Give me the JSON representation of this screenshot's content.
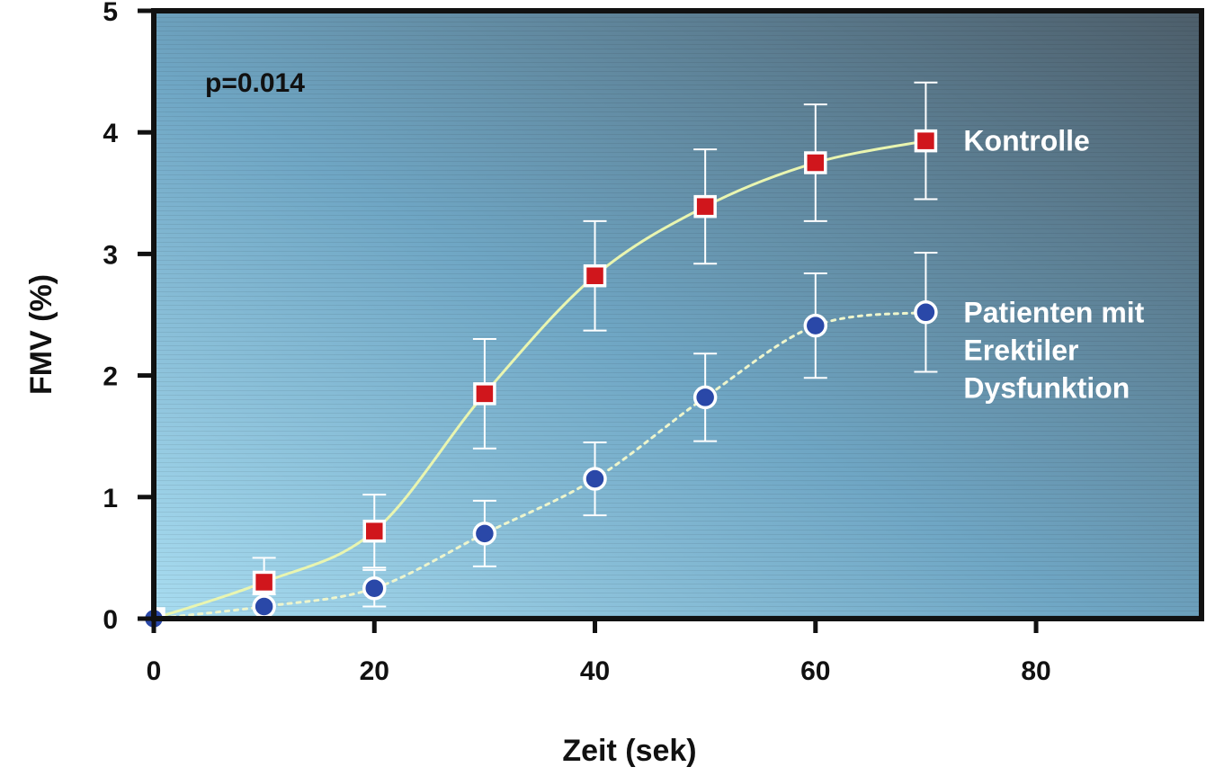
{
  "chart_data": {
    "type": "line",
    "title": "",
    "xlabel": "Zeit (sek)",
    "ylabel": "FMV (%)",
    "xlim": [
      0,
      95
    ],
    "ylim": [
      0,
      5
    ],
    "x_ticks": [
      "0",
      "20",
      "40",
      "60",
      "80"
    ],
    "y_ticks": [
      "0",
      "1",
      "2",
      "3",
      "4",
      "5"
    ],
    "annotation": "p=0.014",
    "grid": false,
    "series": [
      {
        "name": "Kontrolle",
        "label_lines": [
          "Kontrolle"
        ],
        "marker": "square",
        "line_style": "solid",
        "marker_color": "#d0161c",
        "line_color": "#e9f5b0",
        "x": [
          0,
          10,
          20,
          30,
          40,
          50,
          60,
          70
        ],
        "values": [
          0,
          0.3,
          0.72,
          1.85,
          2.82,
          3.39,
          3.75,
          3.93
        ],
        "error": [
          0,
          0.2,
          0.3,
          0.45,
          0.45,
          0.47,
          0.48,
          0.48
        ]
      },
      {
        "name": "Patienten mit Erektiler Dysfunktion",
        "label_lines": [
          "Patienten mit",
          "Erektiler",
          "Dysfunktion"
        ],
        "marker": "circle",
        "line_style": "dotted",
        "marker_color": "#2a48a8",
        "line_color": "#eef5cc",
        "x": [
          0,
          10,
          20,
          30,
          40,
          50,
          60,
          70
        ],
        "values": [
          0,
          0.1,
          0.25,
          0.7,
          1.15,
          1.82,
          2.41,
          2.52
        ],
        "error": [
          0,
          0.1,
          0.15,
          0.27,
          0.3,
          0.36,
          0.43,
          0.49
        ]
      }
    ],
    "colors": {
      "plot_bg_light": "#a8dcf0",
      "plot_bg_dark": "#4d5e6a",
      "frame": "#111111",
      "error_bar": "#ffffff"
    }
  }
}
